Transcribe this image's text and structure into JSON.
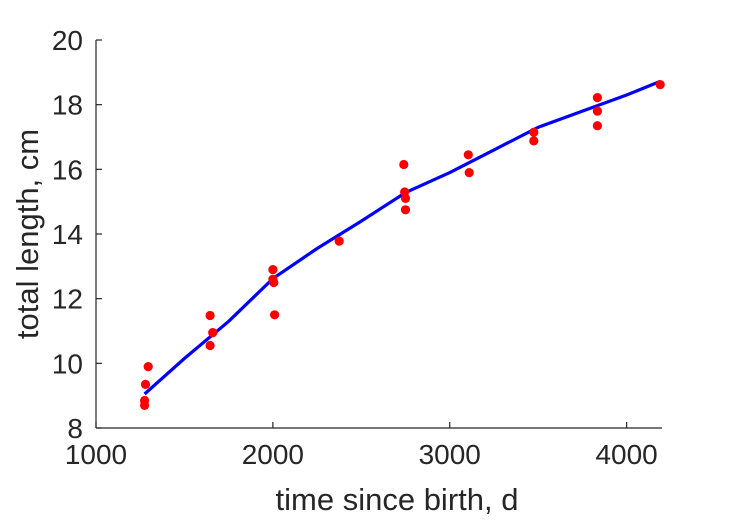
{
  "chart_data": {
    "type": "scatter",
    "title": "",
    "xlabel": "time since birth, d",
    "ylabel": "total length, cm",
    "xlim": [
      1000,
      4200
    ],
    "ylim": [
      8,
      20
    ],
    "xticks": [
      1000,
      2000,
      3000,
      4000
    ],
    "yticks": [
      8,
      10,
      12,
      14,
      16,
      18,
      20
    ],
    "grid": false,
    "legend": "none",
    "series": [
      {
        "kind": "scatter",
        "color": "#ff0000",
        "points": [
          [
            1275,
            8.7
          ],
          [
            1275,
            8.85
          ],
          [
            1280,
            9.35
          ],
          [
            1295,
            9.9
          ],
          [
            1645,
            10.55
          ],
          [
            1645,
            11.48
          ],
          [
            1660,
            10.95
          ],
          [
            2000,
            12.9
          ],
          [
            2000,
            12.6
          ],
          [
            2005,
            12.5
          ],
          [
            2010,
            11.5
          ],
          [
            2375,
            13.78
          ],
          [
            2740,
            16.15
          ],
          [
            2745,
            15.3
          ],
          [
            2750,
            15.1
          ],
          [
            2750,
            14.75
          ],
          [
            3105,
            16.45
          ],
          [
            3110,
            15.9
          ],
          [
            3475,
            17.15
          ],
          [
            3475,
            16.88
          ],
          [
            3835,
            18.22
          ],
          [
            3835,
            17.8
          ],
          [
            3835,
            17.35
          ],
          [
            4190,
            18.62
          ]
        ]
      },
      {
        "kind": "line",
        "color": "#0000ff",
        "points": [
          [
            1275,
            9.05
          ],
          [
            1500,
            10.15
          ],
          [
            1750,
            11.3
          ],
          [
            2000,
            12.62
          ],
          [
            2250,
            13.55
          ],
          [
            2500,
            14.4
          ],
          [
            2750,
            15.28
          ],
          [
            3000,
            15.9
          ],
          [
            3250,
            16.6
          ],
          [
            3500,
            17.3
          ],
          [
            3750,
            17.8
          ],
          [
            4000,
            18.3
          ],
          [
            4190,
            18.72
          ]
        ]
      }
    ]
  }
}
